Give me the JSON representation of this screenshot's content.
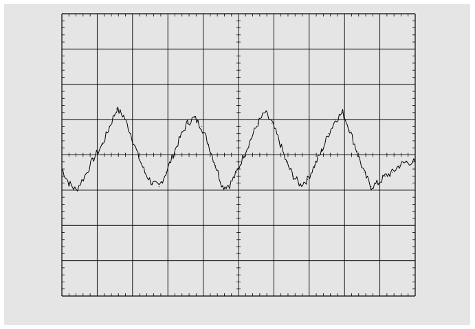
{
  "theme": {
    "panel_bg": "#e5e5e5",
    "grid_color": "#000000",
    "trace_color": "#000000"
  },
  "chart_data": {
    "type": "line",
    "title": "",
    "xlabel": "",
    "ylabel": "",
    "grid": true,
    "x_divisions": 10,
    "y_divisions": 8,
    "minor_ticks_per_division": 5,
    "xlim": [
      0,
      10
    ],
    "ylim": [
      -4,
      4
    ],
    "series": [
      {
        "name": "",
        "x": [
          0,
          0.2,
          0.4,
          0.65,
          0.9,
          1.15,
          1.35,
          1.55,
          1.75,
          1.95,
          2.15,
          2.35,
          2.55,
          2.75,
          2.95,
          3.15,
          3.35,
          3.55,
          3.75,
          3.95,
          4.15,
          4.35,
          4.55,
          4.75,
          4.95,
          5.15,
          5.35,
          5.55,
          5.75,
          5.95,
          6.15,
          6.35,
          6.55,
          6.75,
          6.95,
          7.15,
          7.35,
          7.55,
          7.75,
          7.95,
          8.15,
          8.35,
          8.55,
          8.75,
          8.95,
          9.15,
          9.35,
          9.55,
          9.75,
          10
        ],
        "y": [
          -0.4,
          -0.8,
          -1.0,
          -0.6,
          -0.1,
          0.3,
          0.8,
          1.3,
          1.1,
          0.6,
          0.0,
          -0.5,
          -0.8,
          -0.9,
          -0.5,
          0.0,
          0.5,
          0.9,
          1.05,
          0.8,
          0.3,
          -0.3,
          -0.9,
          -0.85,
          -0.5,
          0.0,
          0.45,
          0.9,
          1.2,
          0.9,
          0.4,
          -0.2,
          -0.6,
          -0.85,
          -0.7,
          -0.3,
          0.1,
          0.6,
          1.0,
          1.2,
          0.7,
          0.1,
          -0.5,
          -0.9,
          -0.8,
          -0.6,
          -0.5,
          -0.3,
          -0.2,
          -0.2
        ]
      }
    ]
  }
}
